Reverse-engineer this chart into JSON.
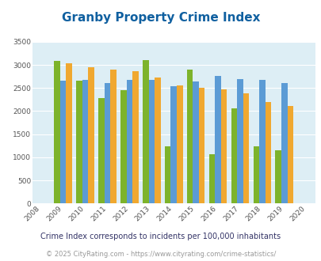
{
  "title": "Granby Property Crime Index",
  "plot_years": [
    2009,
    2010,
    2011,
    2012,
    2013,
    2014,
    2015,
    2016,
    2017,
    2018,
    2019
  ],
  "all_years": [
    2008,
    2009,
    2010,
    2011,
    2012,
    2013,
    2014,
    2015,
    2016,
    2017,
    2018,
    2019,
    2020
  ],
  "granby": [
    3080,
    2650,
    2280,
    2460,
    3100,
    1230,
    2900,
    1060,
    2060,
    1230,
    1160
  ],
  "colorado": [
    2650,
    2670,
    2600,
    2670,
    2670,
    2540,
    2640,
    2760,
    2700,
    2670,
    2600
  ],
  "national": [
    3040,
    2950,
    2900,
    2860,
    2730,
    2560,
    2500,
    2470,
    2380,
    2200,
    2110
  ],
  "granby_color": "#7db32b",
  "colorado_color": "#5b9bd5",
  "national_color": "#f0a830",
  "bg_color": "#ddeef5",
  "ylim": [
    0,
    3500
  ],
  "yticks": [
    0,
    500,
    1000,
    1500,
    2000,
    2500,
    3000,
    3500
  ],
  "subtitle": "Crime Index corresponds to incidents per 100,000 inhabitants",
  "footer": "© 2025 CityRating.com - https://www.cityrating.com/crime-statistics/",
  "bar_width": 0.27
}
